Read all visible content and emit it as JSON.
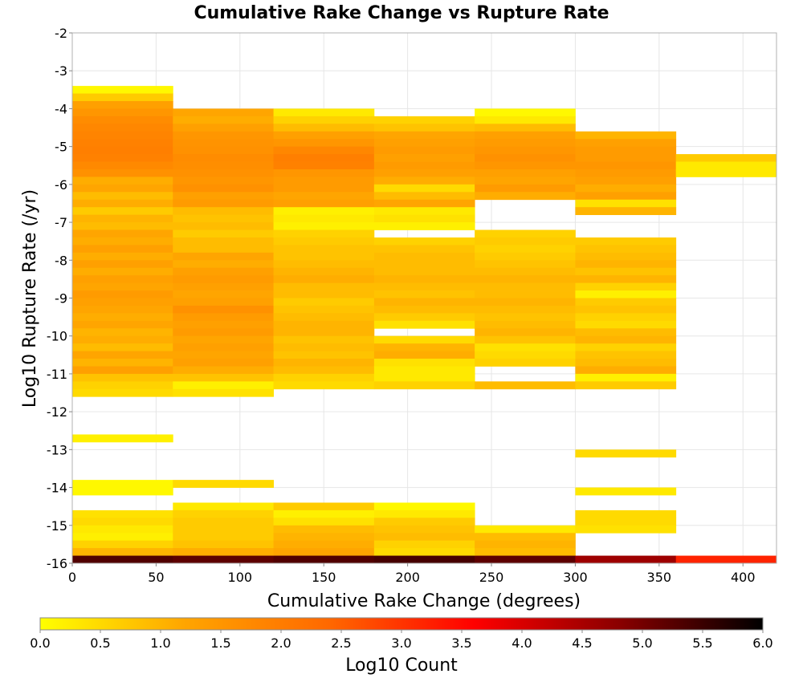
{
  "chart_data": {
    "type": "heatmap",
    "title": "Cumulative Rake Change vs Rupture Rate",
    "xlabel": "Cumulative Rake Change (degrees)",
    "ylabel": "Log10 Rupture Rate (/yr)",
    "xlim": [
      0,
      420
    ],
    "ylim": [
      -16,
      -2
    ],
    "x_ticks": [
      "0",
      "50",
      "100",
      "150",
      "200",
      "250",
      "300",
      "350",
      "400"
    ],
    "y_ticks": [
      "-2",
      "-3",
      "-4",
      "-5",
      "-6",
      "-7",
      "-8",
      "-9",
      "-10",
      "-11",
      "-12",
      "-13",
      "-14",
      "-15",
      "-16"
    ],
    "x_bin_width": 60,
    "y_bin_height": 0.2,
    "grid": true,
    "colorscale": {
      "label": "Log10 Count",
      "min": 0.0,
      "max": 6.0,
      "ticks": [
        "0.0",
        "0.5",
        "1.0",
        "1.5",
        "2.0",
        "2.5",
        "3.0",
        "3.5",
        "4.0",
        "4.5",
        "5.0",
        "5.5",
        "6.0"
      ],
      "colors": [
        "#ffff00",
        "#ffa500",
        "#ff6800",
        "#ff0000",
        "#8b0000",
        "#000000"
      ]
    },
    "columns": [
      {
        "x": 0,
        "cells": [
          {
            "y": -3.6,
            "v": 0.1
          },
          {
            "y": -3.8,
            "v": 0.7
          },
          {
            "y": -4.0,
            "v": 1.3
          },
          {
            "y": -4.2,
            "v": 1.5
          },
          {
            "y": -4.4,
            "v": 1.7
          },
          {
            "y": -4.6,
            "v": 1.8
          },
          {
            "y": -4.8,
            "v": 1.85
          },
          {
            "y": -5.0,
            "v": 1.9
          },
          {
            "y": -5.2,
            "v": 1.95
          },
          {
            "y": -5.4,
            "v": 1.9
          },
          {
            "y": -5.6,
            "v": 1.75
          },
          {
            "y": -5.8,
            "v": 1.6
          },
          {
            "y": -6.0,
            "v": 1.1
          },
          {
            "y": -6.2,
            "v": 1.2
          },
          {
            "y": -6.4,
            "v": 0.9
          },
          {
            "y": -6.6,
            "v": 1.1
          },
          {
            "y": -6.8,
            "v": 0.7
          },
          {
            "y": -7.0,
            "v": 1.0
          },
          {
            "y": -7.2,
            "v": 0.9
          },
          {
            "y": -7.4,
            "v": 1.2
          },
          {
            "y": -7.6,
            "v": 1.1
          },
          {
            "y": -7.8,
            "v": 1.3
          },
          {
            "y": -8.0,
            "v": 1.1
          },
          {
            "y": -8.2,
            "v": 1.3
          },
          {
            "y": -8.4,
            "v": 1.1
          },
          {
            "y": -8.6,
            "v": 1.3
          },
          {
            "y": -8.8,
            "v": 1.2
          },
          {
            "y": -9.0,
            "v": 1.4
          },
          {
            "y": -9.2,
            "v": 1.3
          },
          {
            "y": -9.4,
            "v": 1.2
          },
          {
            "y": -9.6,
            "v": 1.1
          },
          {
            "y": -9.8,
            "v": 1.2
          },
          {
            "y": -10.0,
            "v": 1.0
          },
          {
            "y": -10.2,
            "v": 1.1
          },
          {
            "y": -10.4,
            "v": 0.9
          },
          {
            "y": -10.6,
            "v": 1.2
          },
          {
            "y": -10.8,
            "v": 1.0
          },
          {
            "y": -11.0,
            "v": 1.3
          },
          {
            "y": -11.2,
            "v": 0.8
          },
          {
            "y": -11.4,
            "v": 0.6
          },
          {
            "y": -11.6,
            "v": 0.5
          },
          {
            "y": -12.8,
            "v": 0.2
          },
          {
            "y": -14.0,
            "v": 0.1
          },
          {
            "y": -14.2,
            "v": 0.1
          },
          {
            "y": -14.8,
            "v": 0.4
          },
          {
            "y": -15.0,
            "v": 0.5
          },
          {
            "y": -15.2,
            "v": 0.3
          },
          {
            "y": -15.4,
            "v": 0.2
          },
          {
            "y": -15.6,
            "v": 0.6
          },
          {
            "y": -15.8,
            "v": 1.0
          },
          {
            "y": -16.0,
            "v": 5.3
          }
        ]
      },
      {
        "x": 60,
        "cells": [
          {
            "y": -4.2,
            "v": 1.2
          },
          {
            "y": -4.4,
            "v": 1.1
          },
          {
            "y": -4.6,
            "v": 1.3
          },
          {
            "y": -4.8,
            "v": 1.5
          },
          {
            "y": -5.0,
            "v": 1.55
          },
          {
            "y": -5.2,
            "v": 1.6
          },
          {
            "y": -5.4,
            "v": 1.7
          },
          {
            "y": -5.6,
            "v": 1.65
          },
          {
            "y": -5.8,
            "v": 1.6
          },
          {
            "y": -6.0,
            "v": 1.5
          },
          {
            "y": -6.2,
            "v": 1.6
          },
          {
            "y": -6.4,
            "v": 1.3
          },
          {
            "y": -6.6,
            "v": 1.4
          },
          {
            "y": -6.8,
            "v": 0.9
          },
          {
            "y": -7.0,
            "v": 0.8
          },
          {
            "y": -7.2,
            "v": 0.9
          },
          {
            "y": -7.4,
            "v": 0.7
          },
          {
            "y": -7.6,
            "v": 0.9
          },
          {
            "y": -7.8,
            "v": 0.9
          },
          {
            "y": -8.0,
            "v": 1.2
          },
          {
            "y": -8.2,
            "v": 1.1
          },
          {
            "y": -8.4,
            "v": 1.3
          },
          {
            "y": -8.6,
            "v": 1.4
          },
          {
            "y": -8.8,
            "v": 1.3
          },
          {
            "y": -9.0,
            "v": 1.2
          },
          {
            "y": -9.2,
            "v": 1.3
          },
          {
            "y": -9.4,
            "v": 1.6
          },
          {
            "y": -9.6,
            "v": 1.4
          },
          {
            "y": -9.8,
            "v": 1.3
          },
          {
            "y": -10.0,
            "v": 1.4
          },
          {
            "y": -10.2,
            "v": 1.2
          },
          {
            "y": -10.4,
            "v": 1.3
          },
          {
            "y": -10.6,
            "v": 1.2
          },
          {
            "y": -10.8,
            "v": 1.3
          },
          {
            "y": -11.0,
            "v": 1.1
          },
          {
            "y": -11.2,
            "v": 0.8
          },
          {
            "y": -11.4,
            "v": 0.2
          },
          {
            "y": -11.6,
            "v": 0.4
          },
          {
            "y": -14.0,
            "v": 0.5
          },
          {
            "y": -14.6,
            "v": 0.3
          },
          {
            "y": -14.8,
            "v": 0.6
          },
          {
            "y": -15.0,
            "v": 0.7
          },
          {
            "y": -15.2,
            "v": 0.7
          },
          {
            "y": -15.4,
            "v": 0.7
          },
          {
            "y": -15.6,
            "v": 0.8
          },
          {
            "y": -15.8,
            "v": 1.1
          },
          {
            "y": -16.0,
            "v": 5.2
          }
        ]
      },
      {
        "x": 120,
        "cells": [
          {
            "y": -4.2,
            "v": 0.3
          },
          {
            "y": -4.4,
            "v": 0.6
          },
          {
            "y": -4.6,
            "v": 0.9
          },
          {
            "y": -4.8,
            "v": 1.3
          },
          {
            "y": -5.0,
            "v": 1.5
          },
          {
            "y": -5.2,
            "v": 1.8
          },
          {
            "y": -5.4,
            "v": 1.95
          },
          {
            "y": -5.6,
            "v": 1.9
          },
          {
            "y": -5.8,
            "v": 1.5
          },
          {
            "y": -6.0,
            "v": 1.4
          },
          {
            "y": -6.2,
            "v": 1.4
          },
          {
            "y": -6.4,
            "v": 1.2
          },
          {
            "y": -6.6,
            "v": 1.3
          },
          {
            "y": -6.8,
            "v": 0.2
          },
          {
            "y": -7.0,
            "v": 0.3
          },
          {
            "y": -7.2,
            "v": 0.2
          },
          {
            "y": -7.4,
            "v": 0.6
          },
          {
            "y": -7.6,
            "v": 0.7
          },
          {
            "y": -7.8,
            "v": 0.8
          },
          {
            "y": -8.0,
            "v": 0.8
          },
          {
            "y": -8.2,
            "v": 0.9
          },
          {
            "y": -8.4,
            "v": 1.0
          },
          {
            "y": -8.6,
            "v": 1.1
          },
          {
            "y": -8.8,
            "v": 0.9
          },
          {
            "y": -9.0,
            "v": 0.9
          },
          {
            "y": -9.2,
            "v": 0.7
          },
          {
            "y": -9.4,
            "v": 0.8
          },
          {
            "y": -9.6,
            "v": 0.9
          },
          {
            "y": -9.8,
            "v": 1.0
          },
          {
            "y": -10.0,
            "v": 1.0
          },
          {
            "y": -10.2,
            "v": 0.8
          },
          {
            "y": -10.4,
            "v": 0.9
          },
          {
            "y": -10.6,
            "v": 0.8
          },
          {
            "y": -10.8,
            "v": 1.0
          },
          {
            "y": -11.0,
            "v": 0.9
          },
          {
            "y": -11.2,
            "v": 0.6
          },
          {
            "y": -11.4,
            "v": 0.5
          },
          {
            "y": -14.6,
            "v": 0.7
          },
          {
            "y": -14.8,
            "v": 0.2
          },
          {
            "y": -15.0,
            "v": 0.4
          },
          {
            "y": -15.2,
            "v": 0.9
          },
          {
            "y": -15.4,
            "v": 1.0
          },
          {
            "y": -15.6,
            "v": 1.1
          },
          {
            "y": -15.8,
            "v": 1.2
          },
          {
            "y": -16.0,
            "v": 5.3
          }
        ]
      },
      {
        "x": 180,
        "cells": [
          {
            "y": -4.4,
            "v": 0.6
          },
          {
            "y": -4.6,
            "v": 0.8
          },
          {
            "y": -4.8,
            "v": 1.2
          },
          {
            "y": -5.0,
            "v": 1.3
          },
          {
            "y": -5.2,
            "v": 1.4
          },
          {
            "y": -5.4,
            "v": 1.3
          },
          {
            "y": -5.6,
            "v": 1.4
          },
          {
            "y": -5.8,
            "v": 1.3
          },
          {
            "y": -6.0,
            "v": 1.1
          },
          {
            "y": -6.2,
            "v": 0.5
          },
          {
            "y": -6.4,
            "v": 0.9
          },
          {
            "y": -6.6,
            "v": 1.2
          },
          {
            "y": -6.8,
            "v": 0.3
          },
          {
            "y": -7.0,
            "v": 0.4
          },
          {
            "y": -7.2,
            "v": 0.2
          },
          {
            "y": -7.6,
            "v": 0.6
          },
          {
            "y": -7.8,
            "v": 0.8
          },
          {
            "y": -8.0,
            "v": 0.9
          },
          {
            "y": -8.2,
            "v": 0.9
          },
          {
            "y": -8.4,
            "v": 0.9
          },
          {
            "y": -8.6,
            "v": 1.0
          },
          {
            "y": -8.8,
            "v": 0.9
          },
          {
            "y": -9.0,
            "v": 0.8
          },
          {
            "y": -9.2,
            "v": 1.0
          },
          {
            "y": -9.4,
            "v": 0.9
          },
          {
            "y": -9.6,
            "v": 0.7
          },
          {
            "y": -9.8,
            "v": 0.4
          },
          {
            "y": -10.2,
            "v": 0.5
          },
          {
            "y": -10.4,
            "v": 1.0
          },
          {
            "y": -10.6,
            "v": 1.1
          },
          {
            "y": -10.8,
            "v": 0.4
          },
          {
            "y": -11.0,
            "v": 0.3
          },
          {
            "y": -11.2,
            "v": 0.3
          },
          {
            "y": -11.4,
            "v": 0.6
          },
          {
            "y": -14.6,
            "v": 0.1
          },
          {
            "y": -14.8,
            "v": 0.3
          },
          {
            "y": -15.0,
            "v": 0.7
          },
          {
            "y": -15.2,
            "v": 0.8
          },
          {
            "y": -15.4,
            "v": 0.9
          },
          {
            "y": -15.6,
            "v": 0.6
          },
          {
            "y": -15.8,
            "v": 0.5
          },
          {
            "y": -16.0,
            "v": 5.4
          }
        ]
      },
      {
        "x": 240,
        "cells": [
          {
            "y": -4.2,
            "v": 0.1
          },
          {
            "y": -4.4,
            "v": 0.3
          },
          {
            "y": -4.6,
            "v": 0.9
          },
          {
            "y": -4.8,
            "v": 1.3
          },
          {
            "y": -5.0,
            "v": 1.4
          },
          {
            "y": -5.2,
            "v": 1.5
          },
          {
            "y": -5.4,
            "v": 1.6
          },
          {
            "y": -5.6,
            "v": 1.5
          },
          {
            "y": -5.8,
            "v": 1.3
          },
          {
            "y": -6.0,
            "v": 1.2
          },
          {
            "y": -6.2,
            "v": 1.4
          },
          {
            "y": -6.4,
            "v": 1.1
          },
          {
            "y": -7.4,
            "v": 0.6
          },
          {
            "y": -7.6,
            "v": 0.7
          },
          {
            "y": -7.8,
            "v": 0.6
          },
          {
            "y": -8.0,
            "v": 0.7
          },
          {
            "y": -8.2,
            "v": 0.8
          },
          {
            "y": -8.4,
            "v": 0.9
          },
          {
            "y": -8.6,
            "v": 1.0
          },
          {
            "y": -8.8,
            "v": 0.9
          },
          {
            "y": -9.0,
            "v": 0.9
          },
          {
            "y": -9.2,
            "v": 1.0
          },
          {
            "y": -9.4,
            "v": 0.9
          },
          {
            "y": -9.6,
            "v": 0.8
          },
          {
            "y": -9.8,
            "v": 0.9
          },
          {
            "y": -10.0,
            "v": 1.0
          },
          {
            "y": -10.2,
            "v": 0.8
          },
          {
            "y": -10.4,
            "v": 0.4
          },
          {
            "y": -10.6,
            "v": 0.5
          },
          {
            "y": -10.8,
            "v": 0.6
          },
          {
            "y": -11.4,
            "v": 0.9
          },
          {
            "y": -15.2,
            "v": 0.3
          },
          {
            "y": -15.4,
            "v": 0.9
          },
          {
            "y": -15.6,
            "v": 1.0
          },
          {
            "y": -15.8,
            "v": 0.9
          },
          {
            "y": -16.0,
            "v": 5.2
          }
        ]
      },
      {
        "x": 300,
        "cells": [
          {
            "y": -4.8,
            "v": 1.0
          },
          {
            "y": -5.0,
            "v": 1.3
          },
          {
            "y": -5.2,
            "v": 1.4
          },
          {
            "y": -5.4,
            "v": 1.4
          },
          {
            "y": -5.6,
            "v": 1.5
          },
          {
            "y": -5.8,
            "v": 1.4
          },
          {
            "y": -6.0,
            "v": 1.3
          },
          {
            "y": -6.2,
            "v": 1.1
          },
          {
            "y": -6.4,
            "v": 1.3
          },
          {
            "y": -6.6,
            "v": 0.4
          },
          {
            "y": -6.8,
            "v": 1.0
          },
          {
            "y": -7.6,
            "v": 0.7
          },
          {
            "y": -7.8,
            "v": 0.8
          },
          {
            "y": -8.0,
            "v": 0.9
          },
          {
            "y": -8.2,
            "v": 1.0
          },
          {
            "y": -8.4,
            "v": 0.8
          },
          {
            "y": -8.6,
            "v": 1.0
          },
          {
            "y": -8.8,
            "v": 0.6
          },
          {
            "y": -9.0,
            "v": 0.2
          },
          {
            "y": -9.2,
            "v": 0.7
          },
          {
            "y": -9.4,
            "v": 0.8
          },
          {
            "y": -9.6,
            "v": 0.6
          },
          {
            "y": -9.8,
            "v": 0.5
          },
          {
            "y": -10.0,
            "v": 0.9
          },
          {
            "y": -10.2,
            "v": 1.0
          },
          {
            "y": -10.4,
            "v": 0.6
          },
          {
            "y": -10.6,
            "v": 0.8
          },
          {
            "y": -10.8,
            "v": 0.9
          },
          {
            "y": -11.0,
            "v": 1.1
          },
          {
            "y": -11.2,
            "v": 0.2
          },
          {
            "y": -11.4,
            "v": 0.7
          },
          {
            "y": -13.2,
            "v": 0.5
          },
          {
            "y": -14.2,
            "v": 0.3
          },
          {
            "y": -14.8,
            "v": 0.5
          },
          {
            "y": -15.0,
            "v": 0.5
          },
          {
            "y": -15.2,
            "v": 0.4
          },
          {
            "y": -16.0,
            "v": 4.6
          }
        ]
      },
      {
        "x": 360,
        "cells": [
          {
            "y": -5.4,
            "v": 0.7
          },
          {
            "y": -5.6,
            "v": 0.3
          },
          {
            "y": -5.8,
            "v": 0.3
          },
          {
            "y": -16.0,
            "v": 3.2
          }
        ]
      }
    ]
  }
}
